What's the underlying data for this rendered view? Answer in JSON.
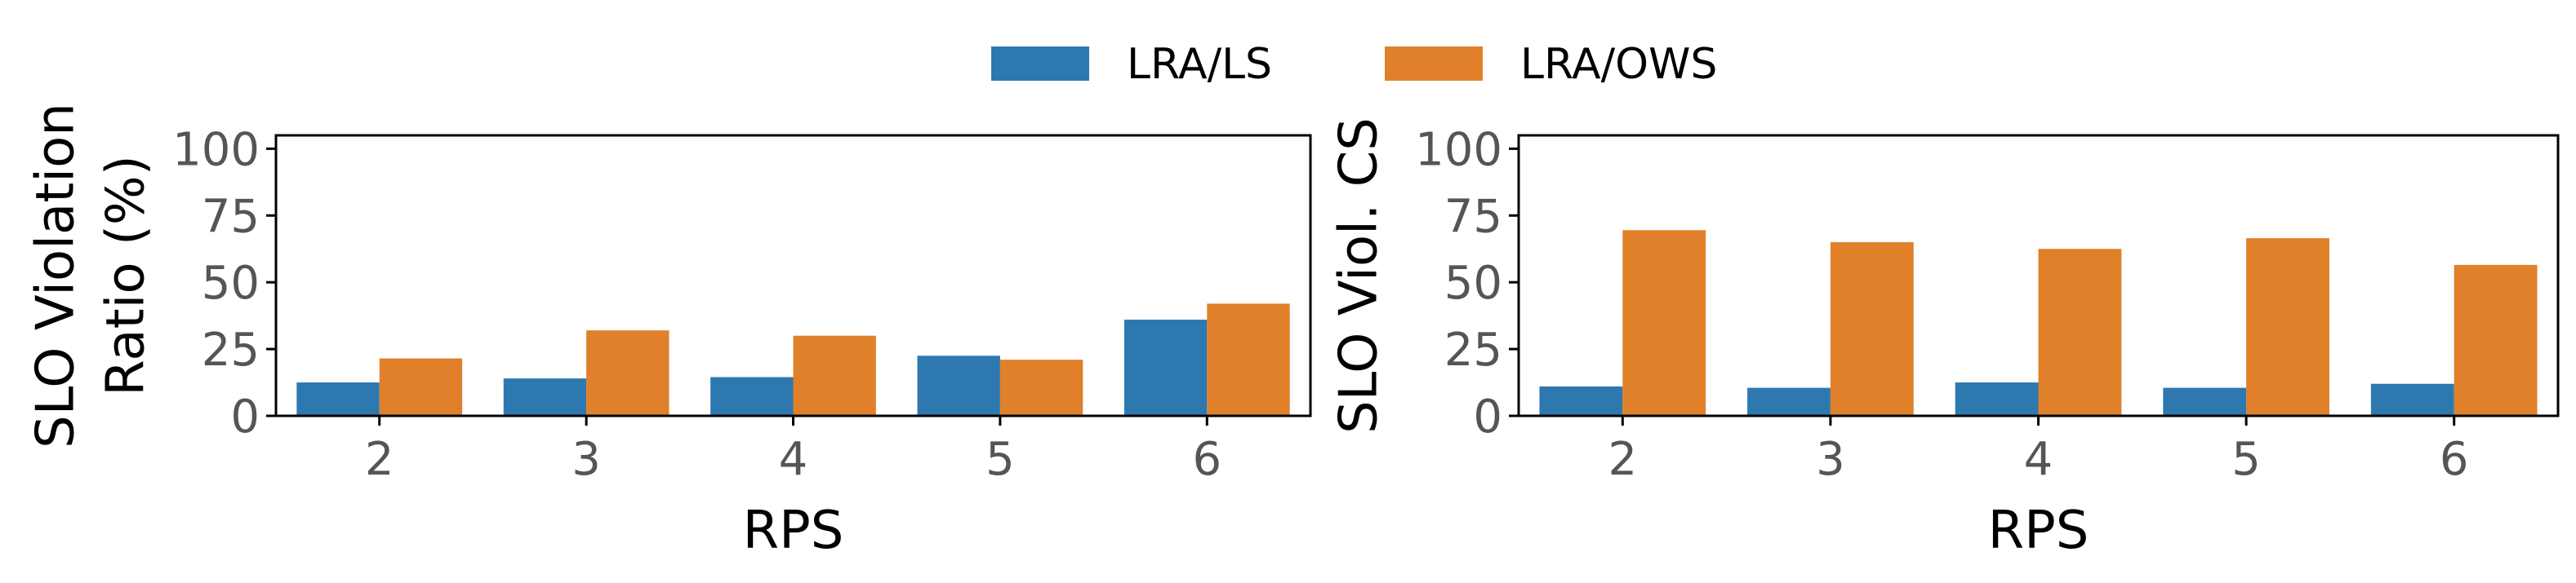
{
  "legend": {
    "placement": "top-center",
    "entries": [
      {
        "name": "LRA/LS",
        "color": "#2e78b0"
      },
      {
        "name": "LRA/OWS",
        "color": "#e0802a"
      }
    ]
  },
  "chart_data": [
    {
      "type": "bar",
      "categories": [
        "2",
        "3",
        "4",
        "5",
        "6"
      ],
      "series": [
        {
          "name": "LRA/LS",
          "values": [
            12.5,
            14,
            14.5,
            22.5,
            36
          ],
          "color": "#2e78b0"
        },
        {
          "name": "LRA/OWS",
          "values": [
            21.5,
            32,
            30,
            21,
            42
          ],
          "color": "#e0802a"
        }
      ],
      "xlabel": "RPS",
      "ylabel": [
        "SLO Violation",
        "Ratio (%)"
      ],
      "ylim": [
        0,
        105
      ],
      "yticks": [
        0,
        25,
        50,
        75,
        100
      ],
      "grid": false
    },
    {
      "type": "bar",
      "categories": [
        "2",
        "3",
        "4",
        "5",
        "6"
      ],
      "series": [
        {
          "name": "LRA/LS",
          "values": [
            11,
            10.5,
            12.5,
            10.5,
            12
          ],
          "color": "#2e78b0"
        },
        {
          "name": "LRA/OWS",
          "values": [
            69.5,
            65,
            62.5,
            66.5,
            56.5
          ],
          "color": "#e0802a"
        }
      ],
      "xlabel": "RPS",
      "ylabel": [
        "SLO Viol. CS"
      ],
      "ylim": [
        0,
        105
      ],
      "yticks": [
        0,
        25,
        50,
        75,
        100
      ],
      "grid": false
    }
  ]
}
